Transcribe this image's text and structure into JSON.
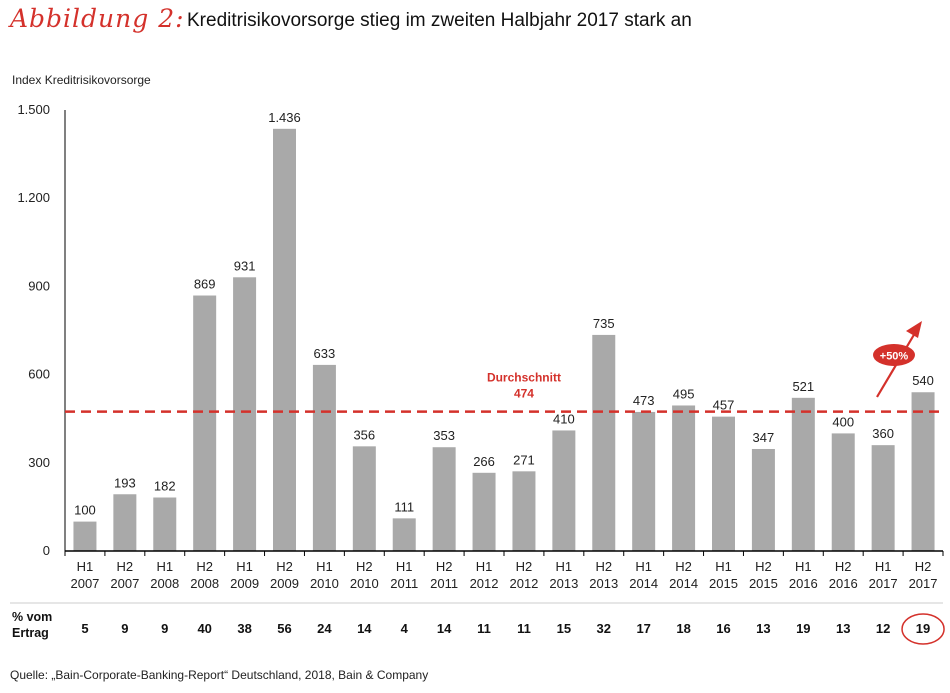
{
  "header": {
    "figure_label": "Abbildung 2:",
    "title": "Kreditrisikovorsorge stieg im zweiten Halbjahr 2017 stark an"
  },
  "footer": {
    "source": "Quelle: „Bain-Corporate-Banking-Report“ Deutschland, 2018, Bain & Company"
  },
  "colors": {
    "bar": "#a9a9a9",
    "accent": "#d4312b",
    "axis": "#000000",
    "text": "#222222"
  },
  "chart_data": {
    "type": "bar",
    "ylabel": "Index Kreditrisikovorsorge",
    "ylim": [
      0,
      1500
    ],
    "yticks": [
      0,
      300,
      600,
      900,
      1200,
      1500
    ],
    "ytick_labels": [
      "0",
      "300",
      "600",
      "900",
      "1.200",
      "1.500"
    ],
    "categories": [
      {
        "half": "H1",
        "year": "2007"
      },
      {
        "half": "H2",
        "year": "2007"
      },
      {
        "half": "H1",
        "year": "2008"
      },
      {
        "half": "H2",
        "year": "2008"
      },
      {
        "half": "H1",
        "year": "2009"
      },
      {
        "half": "H2",
        "year": "2009"
      },
      {
        "half": "H1",
        "year": "2010"
      },
      {
        "half": "H2",
        "year": "2010"
      },
      {
        "half": "H1",
        "year": "2011"
      },
      {
        "half": "H2",
        "year": "2011"
      },
      {
        "half": "H1",
        "year": "2012"
      },
      {
        "half": "H2",
        "year": "2012"
      },
      {
        "half": "H1",
        "year": "2013"
      },
      {
        "half": "H2",
        "year": "2013"
      },
      {
        "half": "H1",
        "year": "2014"
      },
      {
        "half": "H2",
        "year": "2014"
      },
      {
        "half": "H1",
        "year": "2015"
      },
      {
        "half": "H2",
        "year": "2015"
      },
      {
        "half": "H1",
        "year": "2016"
      },
      {
        "half": "H2",
        "year": "2016"
      },
      {
        "half": "H1",
        "year": "2017"
      },
      {
        "half": "H2",
        "year": "2017"
      }
    ],
    "values": [
      100,
      193,
      182,
      869,
      931,
      1436,
      633,
      356,
      111,
      353,
      266,
      271,
      410,
      735,
      473,
      495,
      457,
      347,
      521,
      400,
      360,
      540
    ],
    "value_labels": [
      "100",
      "193",
      "182",
      "869",
      "931",
      "1.436",
      "633",
      "356",
      "111",
      "353",
      "266",
      "271",
      "410",
      "735",
      "473",
      "495",
      "457",
      "347",
      "521",
      "400",
      "360",
      "540"
    ],
    "average": {
      "label": "Durchschnitt",
      "value": 474,
      "value_label": "474"
    },
    "growth_annotation": "+50%",
    "ertrag_row": {
      "label_line1": "% vom",
      "label_line2": "Ertrag",
      "values": [
        "5",
        "9",
        "9",
        "40",
        "38",
        "56",
        "24",
        "14",
        "4",
        "14",
        "11",
        "11",
        "15",
        "32",
        "17",
        "18",
        "16",
        "13",
        "19",
        "13",
        "12",
        "19"
      ],
      "highlighted_index": 21
    }
  }
}
